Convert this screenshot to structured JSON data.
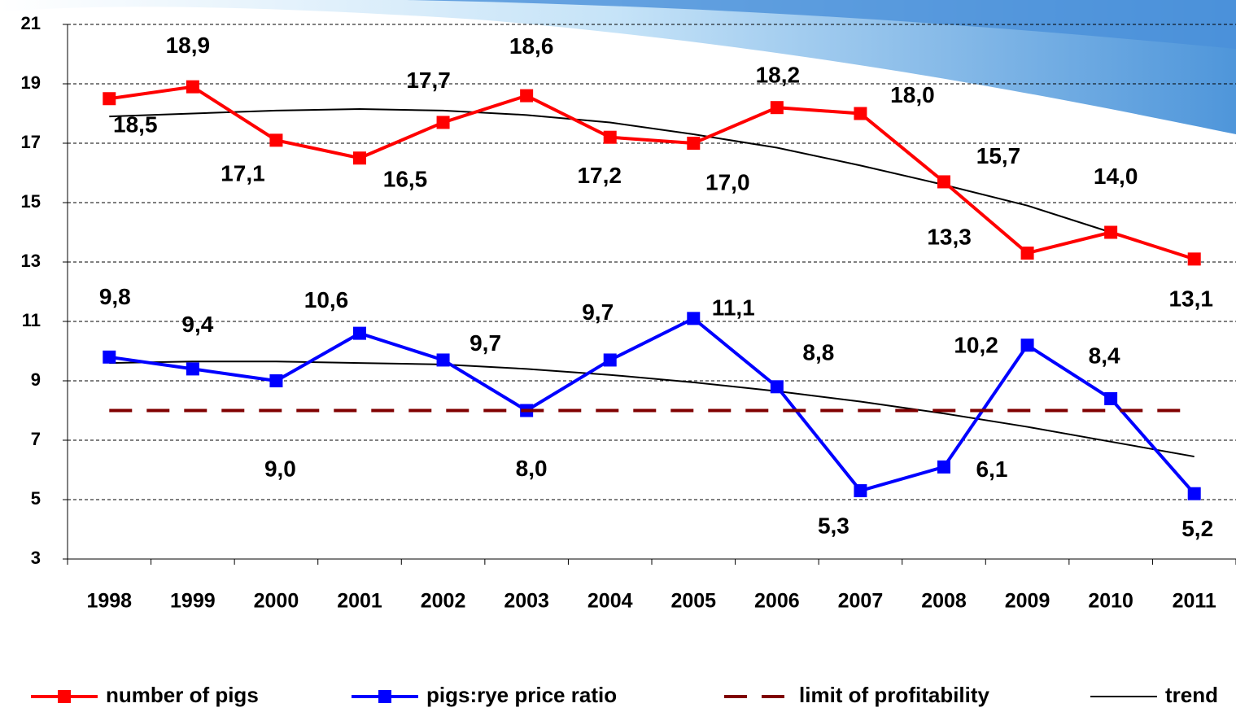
{
  "chart_data": {
    "type": "line",
    "categories": [
      "1998",
      "1999",
      "2000",
      "2001",
      "2002",
      "2003",
      "2004",
      "2005",
      "2006",
      "2007",
      "2008",
      "2009",
      "2010",
      "2011"
    ],
    "series": [
      {
        "name": "number of pigs",
        "color": "#ff0000",
        "values": [
          18.5,
          18.9,
          17.1,
          16.5,
          17.7,
          18.6,
          17.2,
          17.0,
          18.2,
          18.0,
          15.7,
          13.3,
          14.0,
          13.1
        ],
        "value_labels": [
          "18,5",
          "18,9",
          "17,1",
          "16,5",
          "17,7",
          "18,6",
          "17,2",
          "17,0",
          "18,2",
          "18,0",
          "15,7",
          "13,3",
          "14,0",
          "13,1"
        ]
      },
      {
        "name": "pigs:rye price ratio",
        "color": "#0000ff",
        "values": [
          9.8,
          9.4,
          9.0,
          10.6,
          9.7,
          8.0,
          9.7,
          11.1,
          8.8,
          5.3,
          6.1,
          10.2,
          8.4,
          5.2
        ],
        "value_labels": [
          "9,8",
          "9,4",
          "9,0",
          "10,6",
          "9,7",
          "8,0",
          "9,7",
          "11,1",
          "8,8",
          "5,3",
          "6,1",
          "10,2",
          "8,4",
          "5,2"
        ]
      },
      {
        "name": "limit of profitability",
        "color": "#800000",
        "dashed": true,
        "values": [
          8,
          8,
          8,
          8,
          8,
          8,
          8,
          8,
          8,
          8,
          8,
          8,
          8,
          8
        ]
      }
    ],
    "trend": {
      "name": "trend",
      "color": "#000000",
      "values": [
        [
          17.9,
          18.0,
          18.1,
          18.15,
          18.1,
          17.95,
          17.7,
          17.3,
          16.85,
          16.25,
          15.6,
          14.9,
          14.0,
          13.1
        ],
        [
          9.6,
          9.65,
          9.65,
          9.6,
          9.55,
          9.4,
          9.2,
          8.95,
          8.65,
          8.3,
          7.9,
          7.45,
          6.95,
          6.45
        ]
      ]
    },
    "ylim": [
      3,
      21
    ],
    "yticks": [
      3,
      5,
      7,
      9,
      11,
      13,
      15,
      17,
      19,
      21
    ],
    "grid": true
  }
}
